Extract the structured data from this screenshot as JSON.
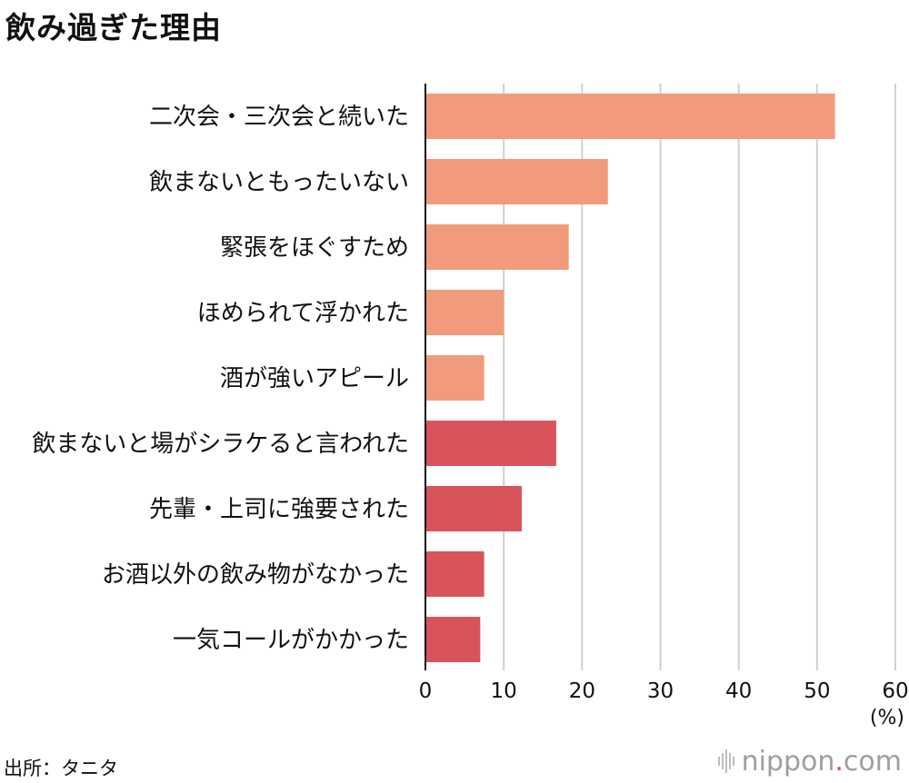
{
  "title": "飲み過ぎた理由",
  "source": "出所：タニタ",
  "logo": {
    "name": "nippon",
    "dot": ".",
    "suffix": "com",
    "icon": "sound-bars-icon",
    "dot_color": "#e0505a"
  },
  "colors": {
    "group_a": "#f19b7c",
    "group_b": "#d9545a",
    "grid": "#d0d0d0",
    "axis": "#111111"
  },
  "chart_data": {
    "type": "bar",
    "orientation": "horizontal",
    "categories": [
      "二次会・三次会と続いた",
      "飲まないともったいない",
      "緊張をほぐすため",
      "ほめられて浮かれた",
      "酒が強いアピール",
      "飲まないと場がシラケると言われた",
      "先輩・上司に強要された",
      "お酒以外の飲み物がなかった",
      "一気コールがかかった"
    ],
    "values": [
      52.3,
      23.3,
      18.3,
      10.0,
      7.5,
      16.7,
      12.3,
      7.5,
      7.0
    ],
    "groups": [
      "a",
      "a",
      "a",
      "a",
      "a",
      "b",
      "b",
      "b",
      "b"
    ],
    "xlim": [
      0,
      60
    ],
    "ticks": [
      0,
      10,
      20,
      30,
      40,
      50,
      60
    ],
    "unit_label": "(%)",
    "grid": true
  }
}
